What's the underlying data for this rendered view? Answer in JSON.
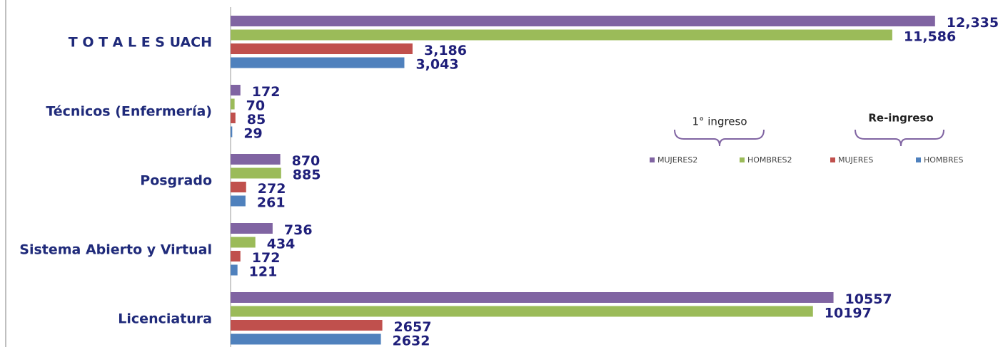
{
  "chart_data": {
    "type": "barh",
    "categories": [
      "T O T A L E S   UACH",
      "Técnicos (Enfermería)",
      "Posgrado",
      "Sistema Abierto y Virtual",
      "Licenciatura"
    ],
    "series": [
      {
        "name": "MUJERES2",
        "color": "#8064a2",
        "values": [
          12335,
          172,
          870,
          736,
          10557
        ],
        "value_labels": [
          "12,335",
          "172",
          "870",
          "736",
          "10557"
        ]
      },
      {
        "name": "HOMBRES2",
        "color": "#9bbb59",
        "values": [
          11586,
          70,
          885,
          434,
          10197
        ],
        "value_labels": [
          "11,586",
          "70",
          "885",
          "434",
          "10197"
        ]
      },
      {
        "name": "MUJERES",
        "color": "#c0504d",
        "values": [
          3186,
          85,
          272,
          172,
          2657
        ],
        "value_labels": [
          "3,186",
          "85",
          "272",
          "172",
          "2657"
        ]
      },
      {
        "name": "HOMBRES",
        "color": "#4f81bd",
        "values": [
          3043,
          29,
          261,
          121,
          2632
        ],
        "value_labels": [
          "3,043",
          "29",
          "261",
          "121",
          "2632"
        ]
      }
    ],
    "xlim": [
      0,
      13525
    ],
    "annotations": [
      "1° ingreso",
      "Re-ingreso"
    ]
  }
}
